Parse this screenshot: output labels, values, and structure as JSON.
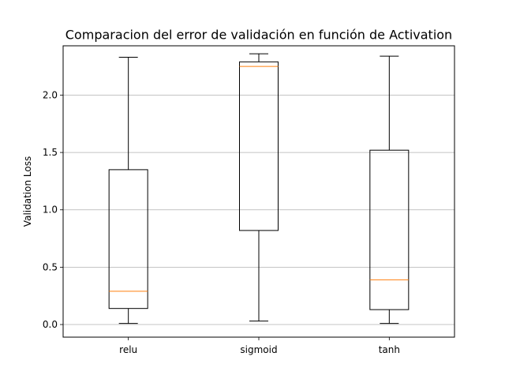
{
  "chart_data": {
    "type": "box",
    "title": "Comparacion del error de validación en función de Activation",
    "xlabel": "",
    "ylabel": "Validation Loss",
    "ylim": [
      -0.11,
      2.43
    ],
    "yticks": [
      0.0,
      0.5,
      1.0,
      1.5,
      2.0
    ],
    "ytick_labels": [
      "0.0",
      "0.5",
      "1.0",
      "1.5",
      "2.0"
    ],
    "grid": "y-major",
    "categories": [
      "relu",
      "sigmoid",
      "tanh"
    ],
    "boxes": [
      {
        "name": "relu",
        "whisker_low": 0.01,
        "q1": 0.14,
        "median": 0.29,
        "q3": 1.35,
        "whisker_high": 2.33
      },
      {
        "name": "sigmoid",
        "whisker_low": 0.03,
        "q1": 0.82,
        "median": 2.25,
        "q3": 2.29,
        "whisker_high": 2.36
      },
      {
        "name": "tanh",
        "whisker_low": 0.01,
        "q1": 0.13,
        "median": 0.39,
        "q3": 1.52,
        "whisker_high": 2.34
      }
    ],
    "colors": {
      "box": "#000000",
      "median": "#ff7f0e",
      "grid": "#b0b0b0"
    }
  }
}
